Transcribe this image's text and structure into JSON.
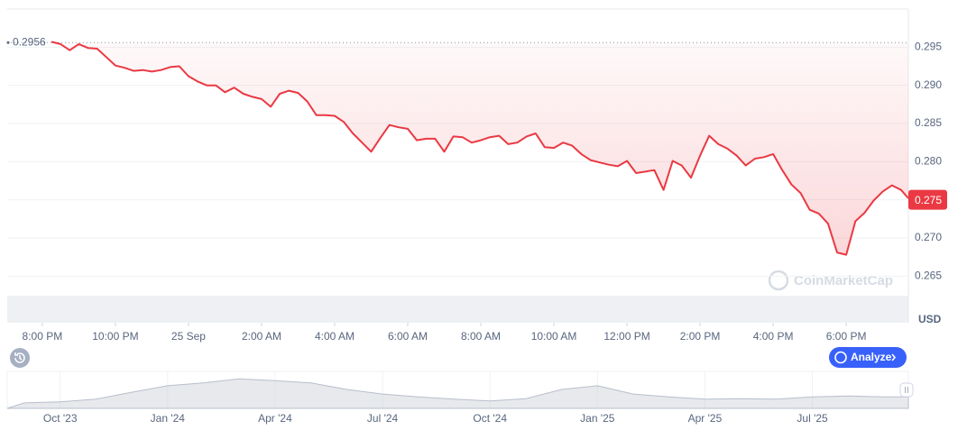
{
  "chart_data": [
    {
      "type": "line",
      "ylabel": "USD",
      "color": "#ea3943",
      "x": [
        20.25,
        20.5,
        20.75,
        21,
        21.25,
        21.5,
        21.75,
        22,
        22.25,
        22.5,
        22.75,
        23,
        23.25,
        23.5,
        23.75,
        24,
        24.25,
        24.5,
        24.75,
        25,
        25.25,
        25.5,
        25.75,
        26,
        26.25,
        26.5,
        26.75,
        27,
        27.25,
        27.5,
        27.75,
        28,
        28.25,
        28.5,
        28.75,
        29,
        29.25,
        29.5,
        29.75,
        30,
        30.25,
        30.5,
        30.75,
        31,
        31.25,
        31.5,
        31.75,
        32,
        32.25,
        32.5,
        32.75,
        33,
        33.25,
        33.5,
        33.75,
        34,
        34.25,
        34.5,
        34.75,
        35,
        35.25,
        35.5,
        35.75,
        36,
        36.25,
        36.5,
        36.75,
        37,
        37.25,
        37.5,
        37.75,
        38,
        38.25,
        38.5,
        38.75,
        39,
        39.25,
        39.5,
        39.75,
        40,
        40.25,
        40.5,
        40.75,
        41,
        41.25,
        41.5,
        41.75,
        42,
        42.25,
        42.5,
        42.75,
        43,
        43.25,
        43.5,
        43.7
      ],
      "values": [
        0.2957,
        0.2954,
        0.2946,
        0.2954,
        0.2949,
        0.2948,
        0.2937,
        0.2926,
        0.2923,
        0.2919,
        0.292,
        0.2918,
        0.292,
        0.2924,
        0.2925,
        0.2912,
        0.2905,
        0.29,
        0.29,
        0.2891,
        0.2897,
        0.2889,
        0.2885,
        0.2882,
        0.2872,
        0.2889,
        0.2893,
        0.289,
        0.2879,
        0.2861,
        0.2861,
        0.286,
        0.2852,
        0.2837,
        0.2825,
        0.2813,
        0.2831,
        0.2848,
        0.2845,
        0.2843,
        0.2828,
        0.283,
        0.283,
        0.2813,
        0.2833,
        0.2832,
        0.2825,
        0.2828,
        0.2832,
        0.2834,
        0.2823,
        0.2825,
        0.2833,
        0.2837,
        0.2819,
        0.2818,
        0.2825,
        0.2821,
        0.281,
        0.2802,
        0.2799,
        0.2796,
        0.2794,
        0.2801,
        0.2785,
        0.2787,
        0.2789,
        0.2763,
        0.2801,
        0.2795,
        0.2779,
        0.2808,
        0.2834,
        0.2823,
        0.2817,
        0.2808,
        0.2795,
        0.2804,
        0.2806,
        0.281,
        0.2789,
        0.277,
        0.2759,
        0.2737,
        0.2732,
        0.2719,
        0.2681,
        0.2678,
        0.2722,
        0.2733,
        0.2749,
        0.2761,
        0.2769,
        0.2763,
        0.2752
      ],
      "xlim": [
        19.04,
        43.7
      ],
      "xticks": [
        {
          "value": 20,
          "label": "8:00 PM"
        },
        {
          "value": 22,
          "label": "10:00 PM"
        },
        {
          "value": 24,
          "label": "25 Sep"
        },
        {
          "value": 26,
          "label": "2:00 AM"
        },
        {
          "value": 28,
          "label": "4:00 AM"
        },
        {
          "value": 30,
          "label": "6:00 AM"
        },
        {
          "value": 32,
          "label": "8:00 AM"
        },
        {
          "value": 34,
          "label": "10:00 AM"
        },
        {
          "value": 36,
          "label": "12:00 PM"
        },
        {
          "value": 38,
          "label": "2:00 PM"
        },
        {
          "value": 40,
          "label": "4:00 PM"
        },
        {
          "value": 42,
          "label": "6:00 PM"
        }
      ],
      "ylim": [
        0.2589,
        0.3
      ],
      "yticks": [
        0.295,
        {
          "value": 0.29,
          "label": "0.290"
        },
        0.285,
        {
          "value": 0.28,
          "label": "0.280"
        },
        0.275,
        {
          "value": 0.27,
          "label": "0.270"
        },
        0.265
      ],
      "grid": true,
      "open_price": 0.2956,
      "current_price": 0.275
    },
    {
      "type": "area",
      "color": "#c9ced6",
      "x": [
        "2023-09",
        "2023-10",
        "2023-11",
        "2023-12",
        "2024-01",
        "2024-02",
        "2024-03",
        "2024-04",
        "2024-05",
        "2024-06",
        "2024-07",
        "2024-08",
        "2024-09",
        "2024-10",
        "2024-11",
        "2024-12",
        "2025-01",
        "2025-02",
        "2025-03",
        "2025-04",
        "2025-05",
        "2025-06",
        "2025-07",
        "2025-08",
        "2025-09"
      ],
      "values": [
        0.12,
        0.14,
        0.2,
        0.35,
        0.49,
        0.55,
        0.64,
        0.6,
        0.55,
        0.41,
        0.31,
        0.25,
        0.2,
        0.16,
        0.21,
        0.41,
        0.49,
        0.31,
        0.25,
        0.2,
        0.21,
        0.2,
        0.25,
        0.27,
        0.25
      ],
      "ylim": [
        0,
        0.8
      ],
      "xticks": [
        {
          "value": "2023-10",
          "label": "Oct '23"
        },
        {
          "value": "2024-01",
          "label": "Jan '24"
        },
        {
          "value": "2024-04",
          "label": "Apr '24"
        },
        {
          "value": "2024-07",
          "label": "Jul '24"
        },
        {
          "value": "2024-10",
          "label": "Oct '24"
        },
        {
          "value": "2025-01",
          "label": "Jan '25"
        },
        {
          "value": "2025-04",
          "label": "Apr '25"
        },
        {
          "value": "2025-07",
          "label": "Jul '25"
        }
      ]
    }
  ],
  "ui": {
    "watermark": "CoinMarketCap",
    "analyze_button": "Analyze"
  }
}
